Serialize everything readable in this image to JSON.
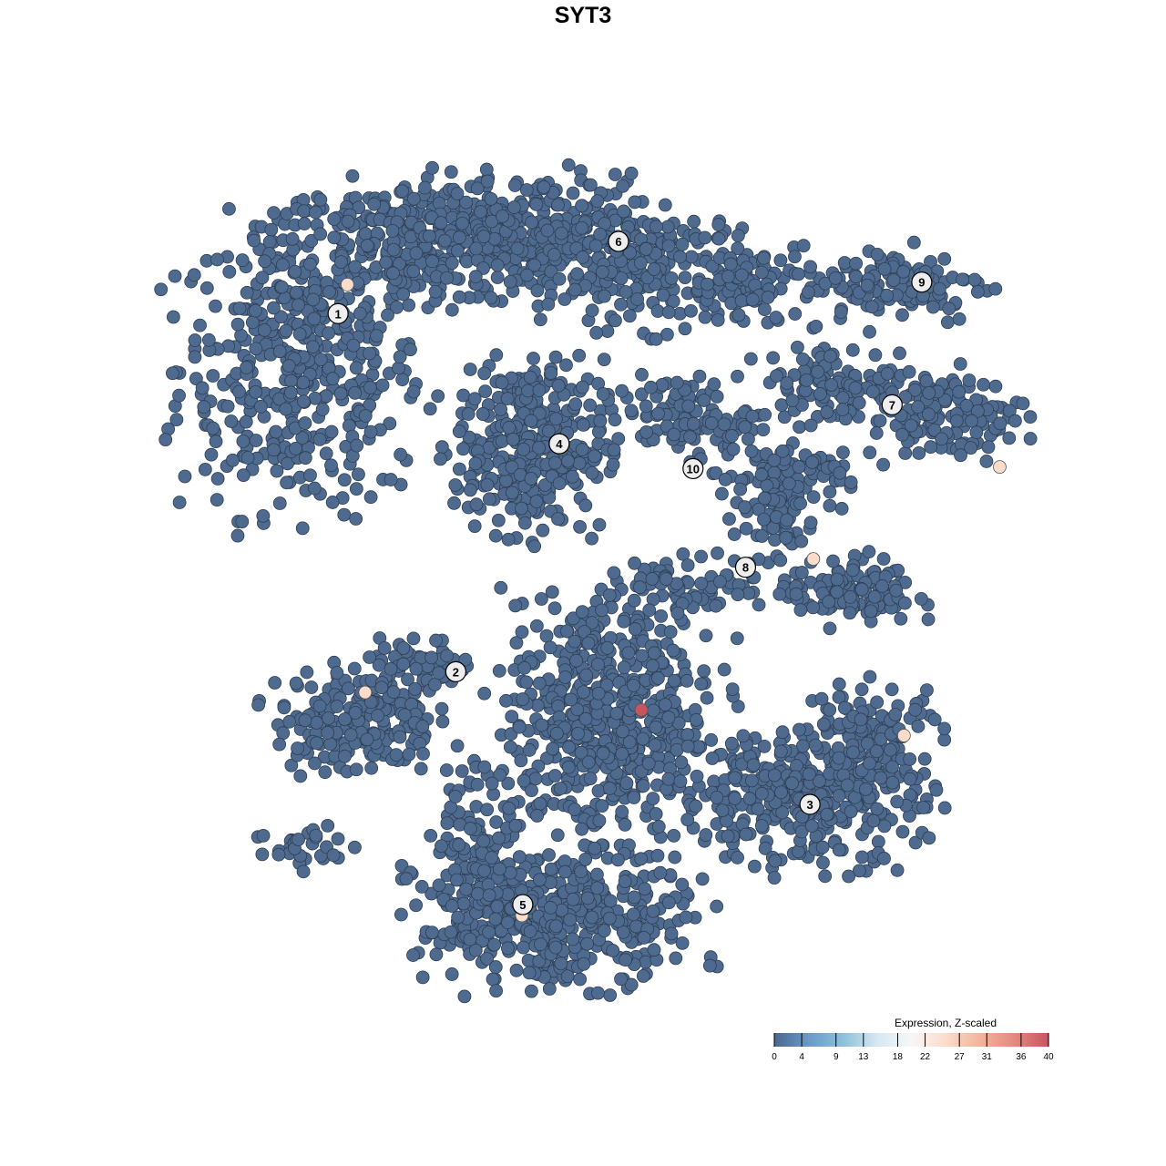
{
  "chart_data": {
    "type": "scatter",
    "title": "SYT3",
    "xlabel": "",
    "ylabel": "",
    "xlim": [
      -50,
      50
    ],
    "ylim": [
      -50,
      50
    ],
    "grid": false,
    "axes_visible": false,
    "point_color_default": "#4e6a8e",
    "point_stroke": "#2f3f55",
    "colorbar": {
      "title": "Expression, Z-scaled",
      "ticks": [
        "0",
        "4",
        "9",
        "13",
        "18",
        "22",
        "27",
        "31",
        "36",
        "40"
      ],
      "range": [
        0,
        40
      ],
      "colors": [
        "#4a6890",
        "#6a9ac9",
        "#8cc0da",
        "#d6e8f1",
        "#f7f7f7",
        "#fbdccb",
        "#f2b49a",
        "#e38a80",
        "#c8545f"
      ],
      "placement": "bottom-right"
    },
    "clusters": [
      {
        "label": "1",
        "x": -31.6,
        "y": 32.5
      },
      {
        "label": "2",
        "x": -17.7,
        "y": -10.7
      },
      {
        "label": "3",
        "x": 24.1,
        "y": -26.7
      },
      {
        "label": "4",
        "x": -5.5,
        "y": 16.8
      },
      {
        "label": "5",
        "x": -9.8,
        "y": -38.8
      },
      {
        "label": "6",
        "x": 1.5,
        "y": 41.2
      },
      {
        "label": "7",
        "x": 33.8,
        "y": 21.5
      },
      {
        "label": "8",
        "x": 16.5,
        "y": 1.9
      },
      {
        "label": "9",
        "x": 37.3,
        "y": 36.3
      },
      {
        "label": "10",
        "x": 10.3,
        "y": 13.8
      }
    ],
    "point_density": [
      {
        "cx": -36,
        "cy": 26,
        "sx": 9,
        "sy": 11,
        "n": 450
      },
      {
        "cx": -23,
        "cy": 41,
        "sx": 10,
        "sy": 4.5,
        "n": 300
      },
      {
        "cx": -9,
        "cy": 42,
        "sx": 9,
        "sy": 4.5,
        "n": 300
      },
      {
        "cx": 6,
        "cy": 38,
        "sx": 8,
        "sy": 4.5,
        "n": 200
      },
      {
        "cx": 17,
        "cy": 35,
        "sx": 4,
        "sy": 3,
        "n": 60
      },
      {
        "cx": -9,
        "cy": 16.5,
        "sx": 5.5,
        "sy": 6.5,
        "n": 350
      },
      {
        "cx": 34,
        "cy": 36,
        "sx": 7,
        "sy": 3,
        "n": 120
      },
      {
        "cx": 28.5,
        "cy": 24,
        "sx": 7,
        "sy": 3,
        "n": 120
      },
      {
        "cx": 40,
        "cy": 20,
        "sx": 6,
        "sy": 3,
        "n": 120
      },
      {
        "cx": 9,
        "cy": 20,
        "sx": 5,
        "sy": 3,
        "n": 100
      },
      {
        "cx": 21,
        "cy": 13,
        "sx": 5,
        "sy": 3,
        "n": 90
      },
      {
        "cx": 20,
        "cy": 8,
        "sx": 3,
        "sy": 3,
        "n": 50
      },
      {
        "cx": 28.5,
        "cy": -1,
        "sx": 5,
        "sy": 2.5,
        "n": 120
      },
      {
        "cx": 10,
        "cy": 0,
        "sx": 6,
        "sy": 2,
        "n": 70
      },
      {
        "cx": -29.5,
        "cy": -16.5,
        "sx": 6,
        "sy": 4,
        "n": 200
      },
      {
        "cx": -22,
        "cy": -10,
        "sx": 4,
        "sy": 2,
        "n": 60
      },
      {
        "cx": 0.5,
        "cy": -16.5,
        "sx": 8,
        "sy": 9,
        "n": 600
      },
      {
        "cx": -6,
        "cy": -40.5,
        "sx": 10,
        "sy": 5,
        "n": 450
      },
      {
        "cx": -15.5,
        "cy": -31,
        "sx": 3,
        "sy": 6,
        "n": 100
      },
      {
        "cx": 23,
        "cy": -26,
        "sx": 9,
        "sy": 5,
        "n": 350
      },
      {
        "cx": 31.5,
        "cy": -18.5,
        "sx": 5,
        "sy": 4,
        "n": 120
      },
      {
        "cx": -35,
        "cy": -32,
        "sx": 4,
        "sy": 2,
        "n": 30
      }
    ],
    "highlighted_points": [
      {
        "x": -30.5,
        "y": 36.0,
        "value": 26
      },
      {
        "x": 46.5,
        "y": 14.0,
        "value": 26
      },
      {
        "x": 24.5,
        "y": 2.9,
        "value": 26
      },
      {
        "x": -28.4,
        "y": -13.2,
        "value": 26
      },
      {
        "x": 4.2,
        "y": -15.3,
        "value": 40
      },
      {
        "x": 35.2,
        "y": -18.4,
        "value": 26
      },
      {
        "x": -9.9,
        "y": -40.1,
        "value": 26
      }
    ]
  }
}
